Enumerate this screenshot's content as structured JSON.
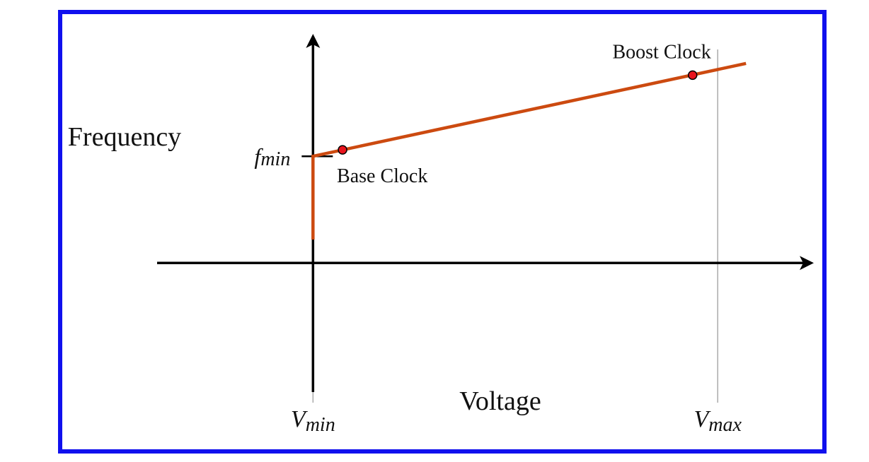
{
  "colors": {
    "border": "#1010ee",
    "curve": "#cc4a10",
    "point_fill": "#e8141e",
    "axis": "#000000",
    "guide": "#aaaaaa"
  },
  "chart_data": {
    "type": "line",
    "xlabel": "Voltage",
    "ylabel": "Frequency",
    "x_ticks": [
      {
        "name": "v-min",
        "base": "V",
        "sub": "min",
        "x": 0.0
      },
      {
        "name": "v-max",
        "base": "V",
        "sub": "max",
        "x": 1.0
      }
    ],
    "y_ticks": [
      {
        "name": "f-min",
        "base": "f",
        "sub": "min",
        "y": 1.0
      }
    ],
    "xlim": [
      -0.38,
      1.22
    ],
    "ylim": [
      -1.09,
      2.1
    ],
    "series": [
      {
        "points": [
          [
            0.0,
            0.22
          ],
          [
            0.0,
            1.0
          ],
          [
            1.07,
            1.87
          ]
        ]
      }
    ],
    "annotations": [
      {
        "label": "Base Clock",
        "x": 0.073,
        "y": 1.06,
        "position": "below-right"
      },
      {
        "label": "Boost Clock",
        "x": 0.938,
        "y": 1.76,
        "position": "above-left"
      }
    ]
  }
}
